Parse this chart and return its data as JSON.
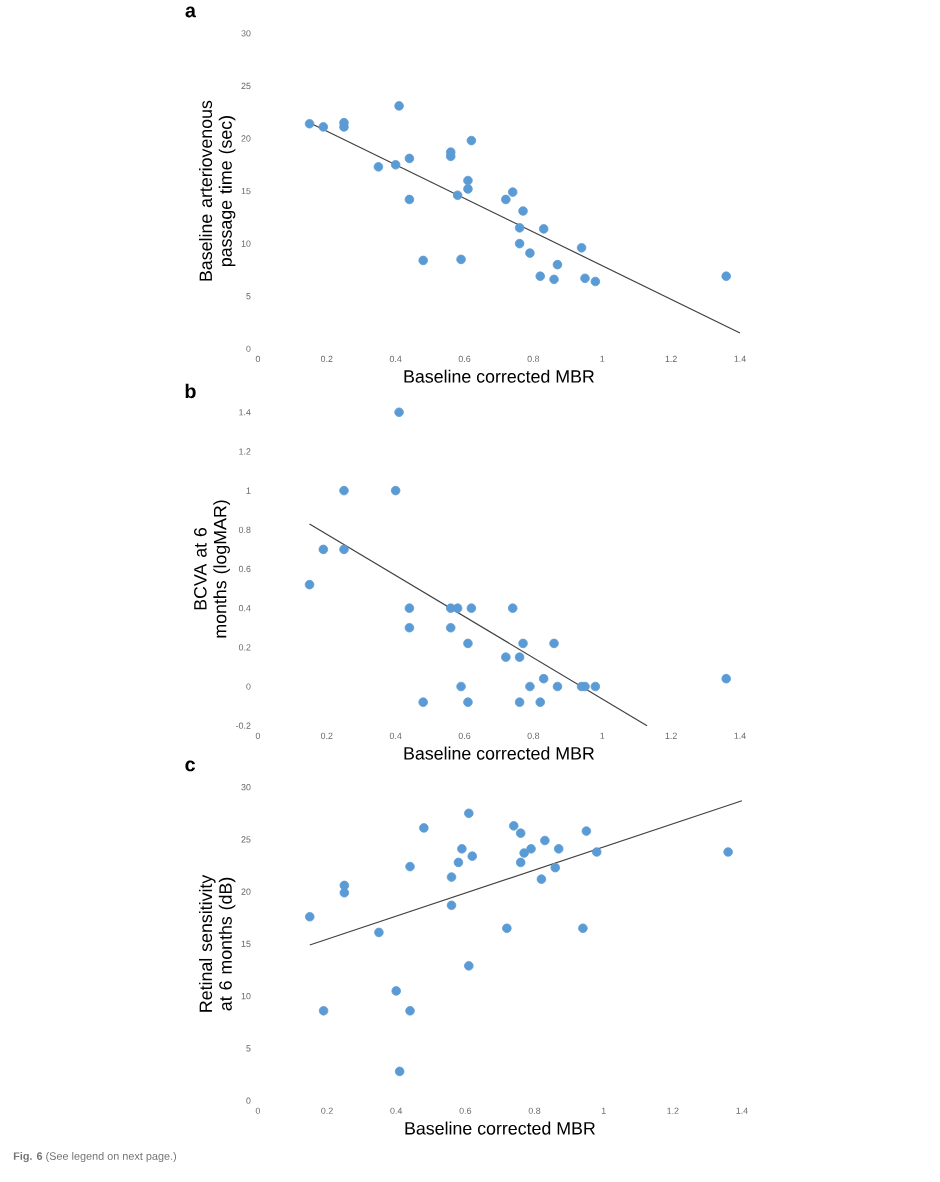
{
  "chart_data": [
    {
      "type": "scatter",
      "title": "a",
      "xlabel": "Baseline corrected MBR",
      "ylabel": "Baseline arteriovenous\npassage time (sec)",
      "marker": "circle",
      "xlim": [
        0,
        1.4
      ],
      "ylim": [
        0,
        30
      ],
      "xticks": [
        0,
        0.2,
        0.4,
        0.6,
        0.8,
        1,
        1.2,
        1.4
      ],
      "yticks": [
        0,
        5,
        10,
        15,
        20,
        25,
        30
      ],
      "series": [
        {
          "color": "#5b9bd5",
          "x": [
            0.15,
            0.19,
            0.25,
            0.25,
            0.35,
            0.4,
            0.41,
            0.44,
            0.44,
            0.48,
            0.56,
            0.56,
            0.58,
            0.59,
            0.61,
            0.61,
            0.62,
            0.72,
            0.74,
            0.77,
            0.76,
            0.76,
            0.79,
            0.83,
            0.82,
            0.86,
            0.87,
            0.94,
            0.95,
            0.98,
            1.36
          ],
          "values": [
            21.4,
            21.1,
            21.5,
            21.1,
            17.3,
            17.5,
            23.1,
            18.1,
            14.2,
            8.4,
            18.7,
            18.3,
            14.6,
            8.5,
            16.0,
            15.2,
            19.8,
            14.2,
            14.9,
            13.1,
            11.5,
            10.0,
            9.1,
            11.4,
            6.9,
            6.6,
            8.0,
            9.6,
            6.7,
            6.4,
            6.9
          ]
        },
        {
          "type": "line",
          "marker": "none",
          "color": "#404040",
          "x": [
            0.15,
            1.4
          ],
          "values": [
            21.5,
            1.5
          ]
        }
      ]
    },
    {
      "type": "scatter",
      "title": "b",
      "xlabel": "Baseline corrected MBR",
      "ylabel": "BCVA at 6 months (logMAR)",
      "marker": "circle",
      "xlim": [
        0,
        1.4
      ],
      "ylim": [
        -0.2,
        1.4
      ],
      "xticks": [
        0,
        0.2,
        0.4,
        0.6,
        0.8,
        1,
        1.2,
        1.4
      ],
      "yticks": [
        -0.2,
        0,
        0.2,
        0.4,
        0.6,
        0.8,
        1,
        1.2,
        1.4
      ],
      "series": [
        {
          "color": "#5b9bd5",
          "x": [
            0.15,
            0.19,
            0.25,
            0.25,
            0.4,
            0.41,
            0.44,
            0.44,
            0.48,
            0.56,
            0.56,
            0.58,
            0.59,
            0.61,
            0.61,
            0.62,
            0.72,
            0.74,
            0.76,
            0.77,
            0.76,
            0.79,
            0.83,
            0.82,
            0.86,
            0.87,
            0.94,
            0.95,
            0.98,
            1.36
          ],
          "values": [
            0.52,
            0.7,
            1.0,
            0.7,
            1.0,
            1.4,
            0.4,
            0.3,
            -0.08,
            0.4,
            0.3,
            0.4,
            0.0,
            0.22,
            -0.08,
            0.4,
            0.15,
            0.4,
            0.15,
            0.22,
            -0.08,
            0.0,
            0.04,
            -0.08,
            0.22,
            0.0,
            0.0,
            0.0,
            0.0,
            0.04
          ]
        },
        {
          "type": "line",
          "marker": "none",
          "color": "#404040",
          "x": [
            0.15,
            1.13
          ],
          "values": [
            0.83,
            -0.2
          ]
        }
      ]
    },
    {
      "type": "scatter",
      "title": "c",
      "xlabel": "Baseline corrected MBR",
      "ylabel": "Retinal sensitivity\nat 6 months (dB)",
      "marker": "circle",
      "xlim": [
        0,
        1.4
      ],
      "ylim": [
        0,
        30
      ],
      "xticks": [
        0,
        0.2,
        0.4,
        0.6,
        0.8,
        1,
        1.2,
        1.4
      ],
      "yticks": [
        0,
        5,
        10,
        15,
        20,
        25,
        30
      ],
      "annotations": [
        "**Fig. 6** (See legend on next page.)"
      ],
      "series": [
        {
          "color": "#5b9bd5",
          "x": [
            0.15,
            0.19,
            0.25,
            0.25,
            0.35,
            0.4,
            0.41,
            0.44,
            0.44,
            0.48,
            0.56,
            0.56,
            0.58,
            0.59,
            0.61,
            0.61,
            0.62,
            0.72,
            0.74,
            0.76,
            0.76,
            0.77,
            0.79,
            0.83,
            0.82,
            0.86,
            0.87,
            0.94,
            0.95,
            0.98,
            1.36
          ],
          "values": [
            17.6,
            8.6,
            20.6,
            19.9,
            16.1,
            10.5,
            2.8,
            22.4,
            8.6,
            26.1,
            21.4,
            18.7,
            22.8,
            24.1,
            27.5,
            12.9,
            23.4,
            16.5,
            26.3,
            25.6,
            22.8,
            23.7,
            24.1,
            24.9,
            21.2,
            22.3,
            24.1,
            16.5,
            25.8,
            23.8,
            23.8
          ]
        },
        {
          "type": "line",
          "marker": "none",
          "color": "#404040",
          "x": [
            0.15,
            1.4
          ],
          "values": [
            14.9,
            28.7
          ]
        }
      ]
    }
  ]
}
